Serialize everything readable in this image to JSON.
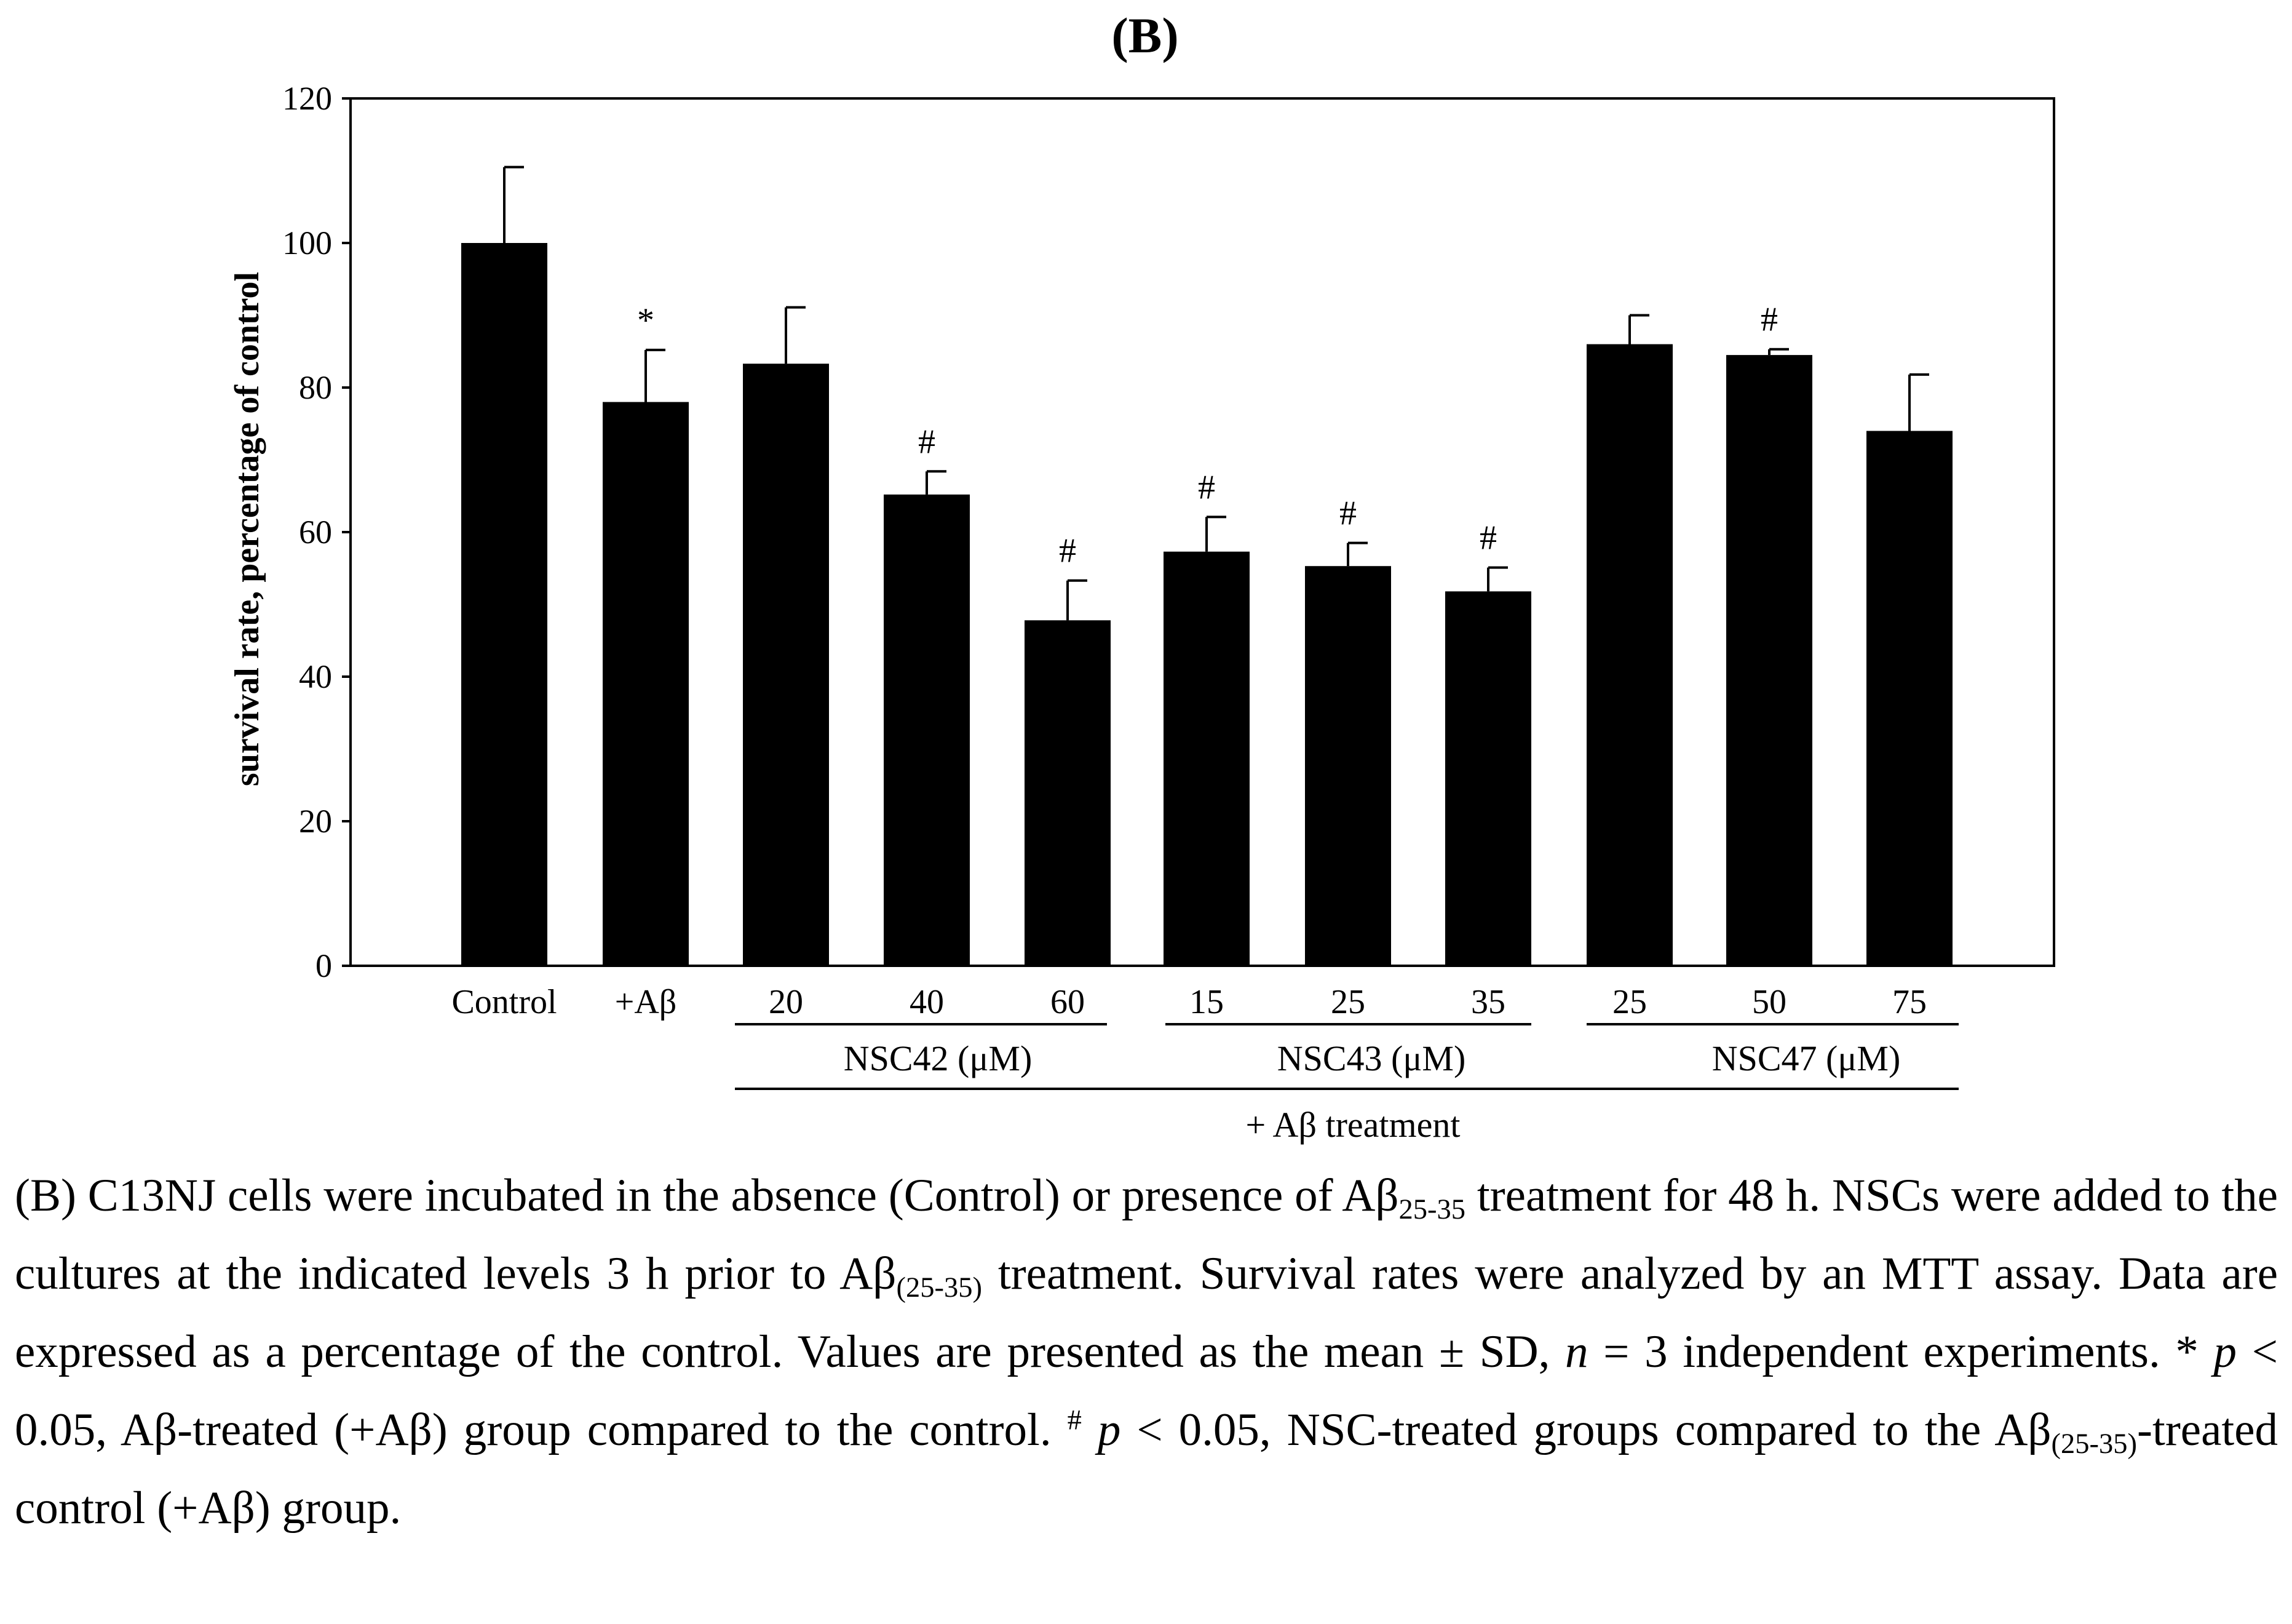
{
  "chart_data": {
    "type": "bar",
    "title": "(B)",
    "ylabel": "survival rate, percentage of control",
    "ylim": [
      0,
      120
    ],
    "yticks": [
      0,
      20,
      40,
      60,
      80,
      100,
      120
    ],
    "bar_color": "#000000",
    "grid": false,
    "categories": [
      "Control",
      "+Aβ",
      "20",
      "40",
      "60",
      "15",
      "25",
      "35",
      "25",
      "50",
      "75"
    ],
    "values": [
      100,
      78,
      83.3,
      65.2,
      47.8,
      57.3,
      55.3,
      51.8,
      86,
      84.5,
      74
    ],
    "errors": [
      10.5,
      7.2,
      7.8,
      3.2,
      5.5,
      4.8,
      3.2,
      3.3,
      4,
      0.8,
      7.8
    ],
    "annotations": [
      "",
      "*",
      "",
      "#",
      "#",
      "#",
      "#",
      "#",
      "",
      "#",
      ""
    ],
    "groups": [
      {
        "label": "NSC42 (μM)",
        "from": 2,
        "to": 4
      },
      {
        "label": "NSC43 (μM)",
        "from": 5,
        "to": 7
      },
      {
        "label": "NSC47 (μM)",
        "from": 8,
        "to": 10
      }
    ],
    "super_group": {
      "label": "+ Aβ treatment",
      "from": 2,
      "to": 10
    }
  },
  "caption": {
    "s1_a": "(B) C13NJ cells were incubated in the absence (Control) or presence of Aβ",
    "s1_sub": "25-35",
    "s1_b": " treatment for 48 h. NSCs were added to the cultures at the indicated levels 3 h prior to Aβ",
    "s2_sub": "(25-35)",
    "s2_b": " treatment. Survival rates were analyzed by an MTT assay. Data are expressed as a percentage of the control. Values are presented as the mean ± SD, ",
    "n_symbol": "n",
    "s3": " = 3 independent experiments. * ",
    "p1": "p",
    "s4": " < 0.05, Aβ-treated (+Aβ) group compared to the control. ",
    "hash_sup": "#",
    "p2": " p",
    "s5": " < 0.05, NSC-treated groups compared to the Aβ",
    "s5_sub": "(25-35)",
    "s6": "-treated control (+Aβ) group."
  }
}
